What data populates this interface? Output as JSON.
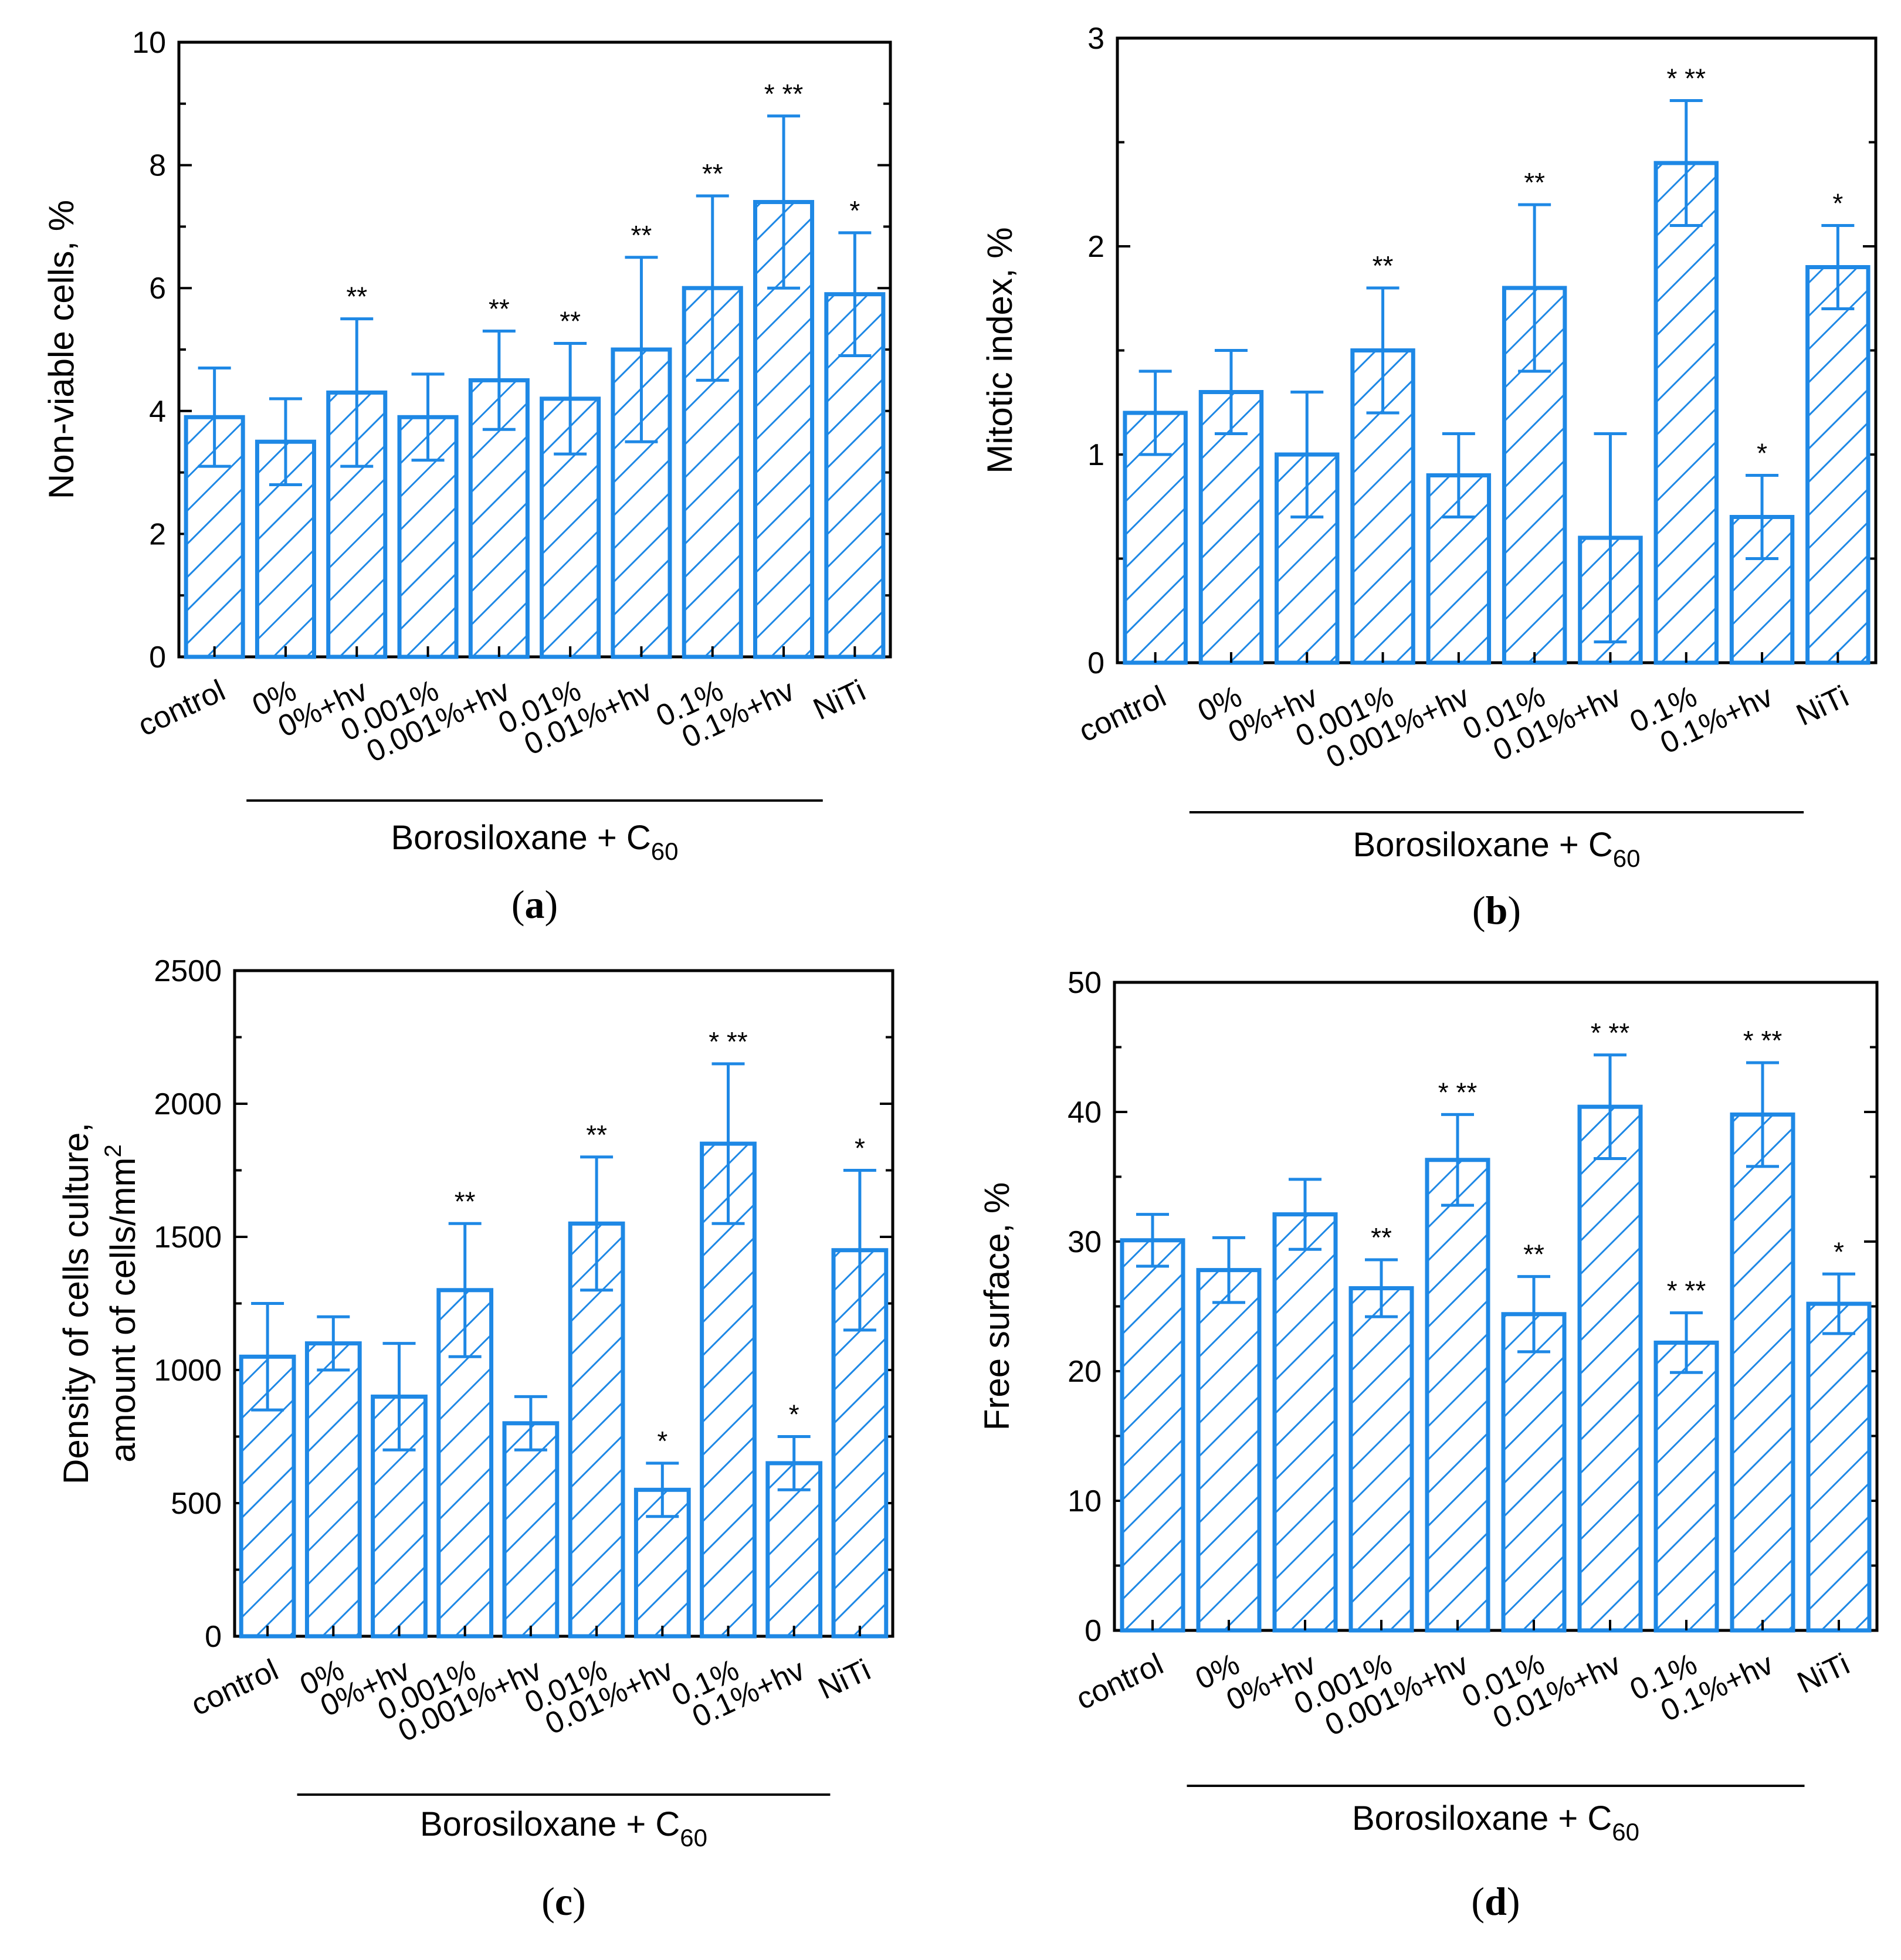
{
  "colors": {
    "bar": "#1e88e5",
    "axis": "#000000",
    "background": "#ffffff"
  },
  "group_label": "Borosiloxane + C",
  "group_label_subscript": "60",
  "chart_data": [
    {
      "id": "a",
      "panel_label": "a",
      "type": "bar",
      "ylabel": "Non-viable cells, %",
      "ylim": [
        0,
        10
      ],
      "yticks": [
        0,
        2,
        4,
        6,
        8,
        10
      ],
      "categories": [
        "control",
        "0%",
        "0%+hv",
        "0.001%",
        "0.001%+hv",
        "0.01%",
        "0.01%+hv",
        "0.1%",
        "0.1%+hv",
        "NiTi"
      ],
      "values": [
        3.9,
        3.5,
        4.3,
        3.9,
        4.5,
        4.2,
        5.0,
        6.0,
        7.4,
        5.9
      ],
      "errors": [
        0.8,
        0.7,
        1.2,
        0.7,
        0.8,
        0.9,
        1.5,
        1.5,
        1.4,
        1.0
      ],
      "significance": [
        "",
        "",
        "**",
        "",
        "**",
        "**",
        "**",
        "**",
        "* **",
        "*"
      ],
      "group_range": [
        1,
        8
      ]
    },
    {
      "id": "b",
      "panel_label": "b",
      "type": "bar",
      "ylabel": "Mitotic index, %",
      "ylim": [
        0,
        3
      ],
      "yticks": [
        0,
        1,
        2,
        3
      ],
      "categories": [
        "control",
        "0%",
        "0%+hv",
        "0.001%",
        "0.001%+hv",
        "0.01%",
        "0.01%+hv",
        "0.1%",
        "0.1%+hv",
        "NiTi"
      ],
      "values": [
        1.2,
        1.3,
        1.0,
        1.5,
        0.9,
        1.8,
        0.6,
        2.4,
        0.7,
        1.9
      ],
      "errors": [
        0.2,
        0.2,
        0.3,
        0.3,
        0.2,
        0.4,
        0.5,
        0.3,
        0.2,
        0.2
      ],
      "significance": [
        "",
        "",
        "",
        "**",
        "",
        "**",
        "",
        "* **",
        "*",
        "*"
      ],
      "group_range": [
        1,
        8
      ]
    },
    {
      "id": "c",
      "panel_label": "c",
      "type": "bar",
      "ylabel": "Density of cells culture,",
      "ylabel2": "amount of cells/mm",
      "ylabel2_sup": "2",
      "ylim": [
        0,
        2500
      ],
      "yticks": [
        0,
        500,
        1000,
        1500,
        2000,
        2500
      ],
      "categories": [
        "control",
        "0%",
        "0%+hv",
        "0.001%",
        "0.001%+hv",
        "0.01%",
        "0.01%+hv",
        "0.1%",
        "0.1%+hv",
        "NiTi"
      ],
      "values": [
        1050,
        1100,
        900,
        1300,
        800,
        1550,
        550,
        1850,
        650,
        1450
      ],
      "errors": [
        200,
        100,
        200,
        250,
        100,
        250,
        100,
        300,
        100,
        300
      ],
      "significance": [
        "",
        "",
        "",
        "**",
        "",
        "**",
        "*",
        "* **",
        "*",
        "*"
      ],
      "group_range": [
        1,
        8
      ]
    },
    {
      "id": "d",
      "panel_label": "d",
      "type": "bar",
      "ylabel": "Free surface, %",
      "ylim": [
        0,
        50
      ],
      "yticks": [
        0,
        10,
        20,
        30,
        40,
        50
      ],
      "categories": [
        "control",
        "0%",
        "0%+hv",
        "0.001%",
        "0.001%+hv",
        "0.01%",
        "0.01%+hv",
        "0.1%",
        "0.1%+hv",
        "NiTi"
      ],
      "values": [
        30.1,
        27.8,
        32.1,
        26.4,
        36.3,
        24.4,
        40.4,
        22.2,
        39.8,
        25.2
      ],
      "errors": [
        2.0,
        2.5,
        2.7,
        2.2,
        3.5,
        2.9,
        4.0,
        2.3,
        4.0,
        2.3
      ],
      "significance": [
        "",
        "",
        "",
        "**",
        "* **",
        "**",
        "* **",
        "* **",
        "* **",
        "*"
      ],
      "group_range": [
        1,
        8
      ]
    }
  ]
}
